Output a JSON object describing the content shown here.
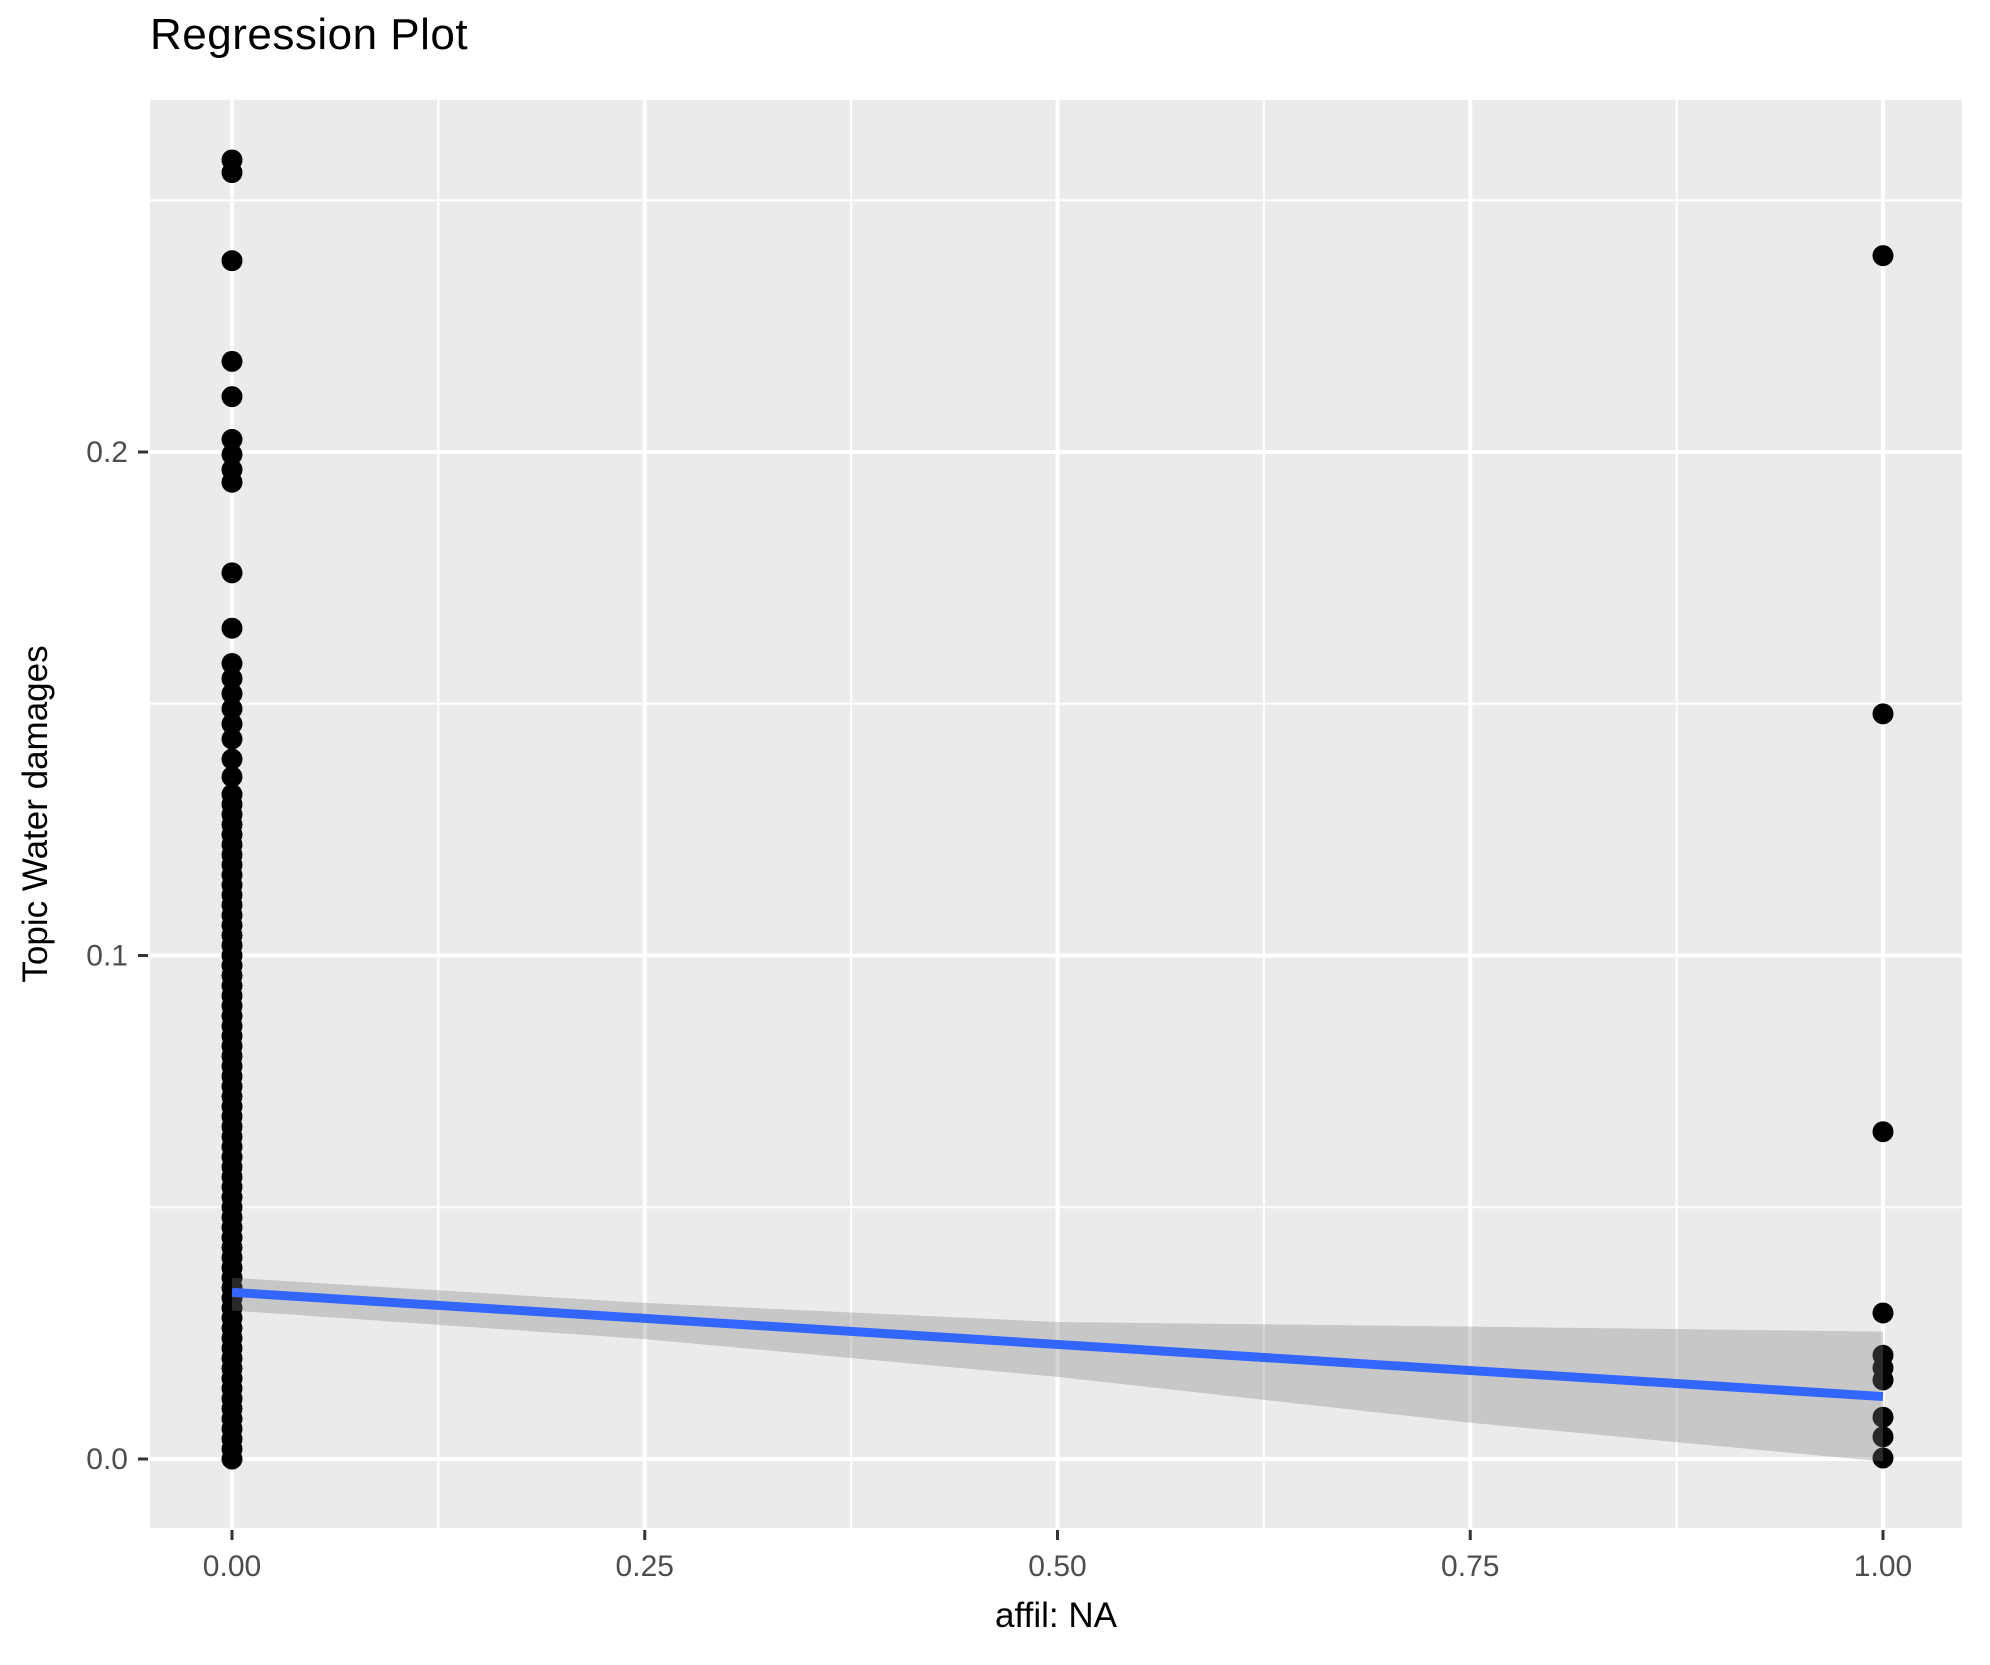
{
  "chart_data": {
    "type": "scatter",
    "title": "Regression Plot",
    "xlabel": "affil: NA",
    "ylabel": "Topic Water damages",
    "xlim": [
      -0.05,
      1.05
    ],
    "ylim": [
      -0.0137,
      0.2699
    ],
    "grid": "on",
    "legend": "none",
    "x_ticks": {
      "values": [
        0.0,
        0.25,
        0.5,
        0.75,
        1.0
      ],
      "labels": [
        "0.00",
        "0.25",
        "0.50",
        "0.75",
        "1.00"
      ]
    },
    "y_ticks": {
      "values": [
        0.0,
        0.1,
        0.2
      ],
      "labels": [
        "0.0",
        "0.1",
        "0.2"
      ]
    },
    "x_minor_gridlines": [
      0.125,
      0.375,
      0.625,
      0.875
    ],
    "y_minor_gridlines": [
      0.05,
      0.15,
      0.25
    ],
    "series": [
      {
        "name": "observations at affil 0 (upper scatter)",
        "x": 0,
        "y": [
          0.258,
          0.2555,
          0.238,
          0.218,
          0.211,
          0.2025,
          0.1995,
          0.1965,
          0.194,
          0.176,
          0.165,
          0.158,
          0.155,
          0.152,
          0.149,
          0.146,
          0.143,
          0.139,
          0.1355,
          0.132
        ]
      },
      {
        "name": "observations at affil 0 (dense strip)",
        "x": 0,
        "y_range": {
          "from": 0.0,
          "to": 0.13,
          "step": 0.002
        }
      },
      {
        "name": "observations at affil 1",
        "x": 1,
        "y": [
          0.239,
          0.148,
          0.065,
          0.029,
          0.0206,
          0.0181,
          0.0157,
          0.0083,
          0.0044,
          0.0002
        ]
      }
    ],
    "regression_line": {
      "x": [
        0,
        1
      ],
      "y": [
        0.0331,
        0.0124
      ],
      "color": "#3366FF",
      "width": 9
    },
    "confidence_band": {
      "x": [
        0,
        0.25,
        0.5,
        0.75,
        1
      ],
      "upper": [
        0.036,
        0.031,
        0.0272,
        0.0263,
        0.0253
      ],
      "lower": [
        0.0295,
        0.0238,
        0.0163,
        0.0072,
        -0.0005
      ],
      "color": "rgba(125,125,125,0.32)"
    },
    "style": {
      "panel_background": "#EBEBEB",
      "gridline_color": "#FFFFFF",
      "major_grid_width": 4,
      "minor_grid_width": 2,
      "point_color": "#000000",
      "point_radius": 10.5,
      "tick_color": "#333333",
      "tick_label_color": "#4D4D4D",
      "tick_label_size": 30
    }
  }
}
